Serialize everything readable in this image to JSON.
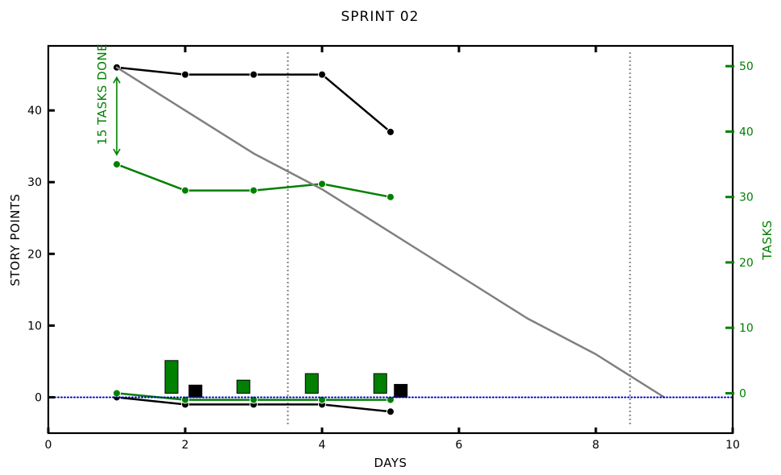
{
  "chart_data": {
    "type": "line",
    "title": "SPRINT 02",
    "xlabel": "DAYS",
    "ylabel": "STORY POINTS",
    "y2label": "TASKS",
    "xlim": [
      0,
      10
    ],
    "ylim": [
      -5,
      49
    ],
    "y2lim": [
      -6.1,
      53.1
    ],
    "x_ticks": [
      0,
      2,
      4,
      6,
      8,
      10
    ],
    "x_top_ticks": [
      2,
      4,
      6,
      8
    ],
    "y_ticks": [
      0,
      10,
      20,
      30,
      40
    ],
    "y2_ticks": [
      0,
      10,
      20,
      30,
      40,
      50
    ],
    "grid": false,
    "vlines": [
      3.5,
      8.5
    ],
    "colors": {
      "points": "#000000",
      "tasks": "#008000",
      "ideal": "#808080",
      "baseline": "#0000cc",
      "vlines": "#808080"
    },
    "series": [
      {
        "key": "points_remaining",
        "axis": "left",
        "color": "#000000",
        "x": [
          1,
          2,
          3,
          4,
          5
        ],
        "y": [
          46,
          45,
          45,
          45,
          37
        ],
        "markers": true
      },
      {
        "key": "points_added",
        "axis": "left",
        "color": "#000000",
        "x": [
          1,
          2,
          3,
          4,
          5
        ],
        "y": [
          0,
          -1,
          -1,
          -1,
          -2
        ],
        "markers": true
      },
      {
        "key": "tasks_remaining",
        "axis": "right",
        "color": "#008000",
        "x": [
          1,
          2,
          3,
          4,
          5
        ],
        "y": [
          35,
          31,
          31,
          32,
          30
        ],
        "markers": true
      },
      {
        "key": "tasks_added",
        "axis": "right",
        "color": "#008000",
        "x": [
          1,
          2,
          3,
          4,
          5
        ],
        "y": [
          0,
          -1,
          -1,
          -1,
          -1
        ],
        "markers": true
      },
      {
        "key": "ideal",
        "axis": "left",
        "color": "#808080",
        "x": [
          1,
          2,
          3,
          4,
          5,
          6,
          7,
          8,
          9
        ],
        "y": [
          46,
          40,
          34,
          29,
          23,
          17,
          11,
          6,
          0
        ],
        "markers": false
      },
      {
        "key": "baseline",
        "axis": "left",
        "color": "#0000cc",
        "x": [
          0,
          10
        ],
        "y": [
          0,
          0
        ],
        "markers": false,
        "dotted": true
      }
    ],
    "bars_tasks": {
      "axis": "right",
      "color": "#008000",
      "x": [
        1.8,
        2.85,
        3.85,
        4.85
      ],
      "values": [
        5,
        2,
        3,
        3
      ]
    },
    "bars_points": {
      "axis": "left",
      "color": "#000000",
      "x": [
        2.15,
        5.15
      ],
      "values": [
        1.7,
        1.8
      ]
    },
    "annotation": {
      "text": "15 TASKS DONE",
      "x": 1,
      "y_from": 50,
      "y_to": 35,
      "axis": "right"
    }
  }
}
